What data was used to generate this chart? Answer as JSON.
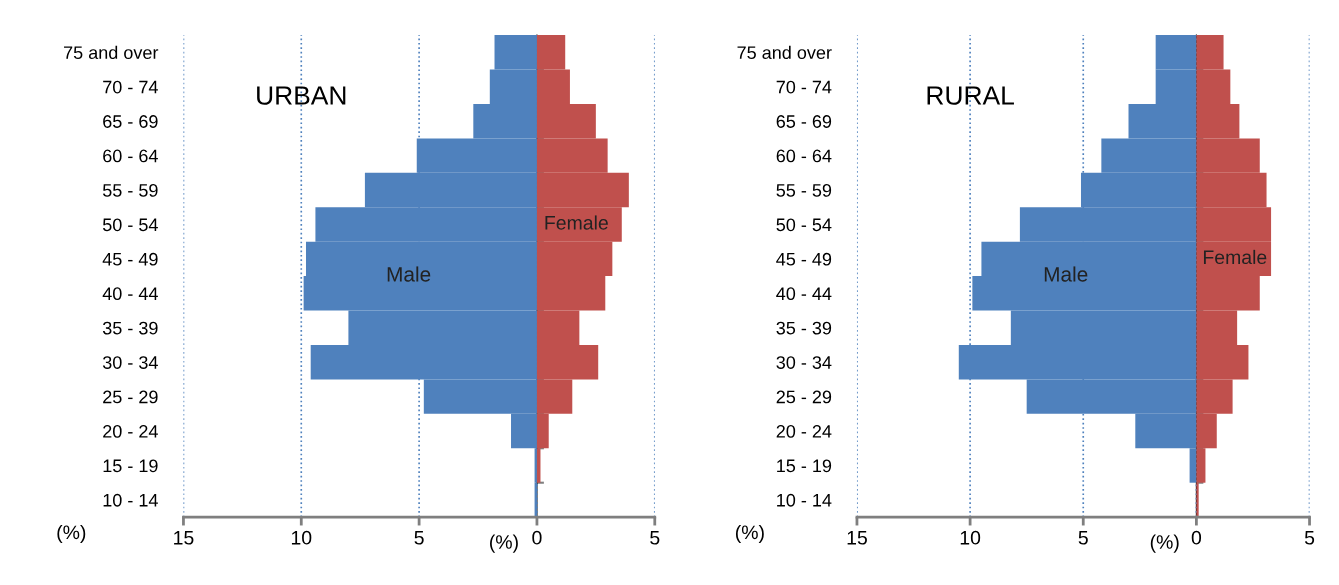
{
  "chart_data": [
    {
      "type": "bar",
      "orientation": "horizontal",
      "stacked": true,
      "title": "URBAN",
      "annotations": [
        "(%)",
        "(%)"
      ],
      "categories": [
        "75 and over",
        "70 - 74",
        "65 - 69",
        "60 - 64",
        "55 - 59",
        "50 - 54",
        "45 - 49",
        "40 - 44",
        "35 - 39",
        "30 - 34",
        "25 - 29",
        "20 - 24",
        "15 - 19",
        "10 - 14"
      ],
      "series": [
        {
          "name": "Male",
          "color": "#4f81bd",
          "values": [
            -1.8,
            -2.0,
            -2.7,
            -5.1,
            -7.3,
            -9.4,
            -9.8,
            -9.9,
            -8.0,
            -9.6,
            -4.8,
            -1.1,
            -0.1,
            -0.1
          ]
        },
        {
          "name": "Female",
          "color": "#c0504d",
          "values": [
            1.2,
            1.4,
            2.5,
            3.0,
            3.9,
            3.6,
            3.2,
            2.9,
            1.8,
            2.6,
            1.5,
            0.5,
            0.15,
            0
          ]
        }
      ],
      "xlim": [
        -15,
        5
      ],
      "xticks": [
        {
          "value": -15,
          "label": "15"
        },
        {
          "value": -10,
          "label": "10"
        },
        {
          "value": -5,
          "label": "5"
        },
        0,
        5
      ],
      "grid": "x"
    },
    {
      "type": "bar",
      "orientation": "horizontal",
      "stacked": true,
      "title": "RURAL",
      "annotations": [
        "(%)",
        "(%)"
      ],
      "categories": [
        "75 and over",
        "70 - 74",
        "65 - 69",
        "60 - 64",
        "55 - 59",
        "50 - 54",
        "45 - 49",
        "40 - 44",
        "35 - 39",
        "30 - 34",
        "25 - 29",
        "20 - 24",
        "15 - 19",
        "10 - 14"
      ],
      "series": [
        {
          "name": "Male",
          "color": "#4f81bd",
          "values": [
            -1.8,
            -1.8,
            -3.0,
            -4.2,
            -5.1,
            -7.8,
            -9.5,
            -9.9,
            -8.2,
            -10.5,
            -7.5,
            -2.7,
            -0.3,
            0
          ]
        },
        {
          "name": "Female",
          "color": "#c0504d",
          "values": [
            1.2,
            1.5,
            1.9,
            2.8,
            3.1,
            3.3,
            3.3,
            2.8,
            1.8,
            2.3,
            1.6,
            0.9,
            0.4,
            0.1
          ]
        }
      ],
      "xlim": [
        -15,
        5
      ],
      "xticks": [
        {
          "value": -15,
          "label": "15"
        },
        {
          "value": -10,
          "label": "10"
        },
        {
          "value": -5,
          "label": "5"
        },
        0,
        5
      ],
      "grid": "x"
    }
  ]
}
